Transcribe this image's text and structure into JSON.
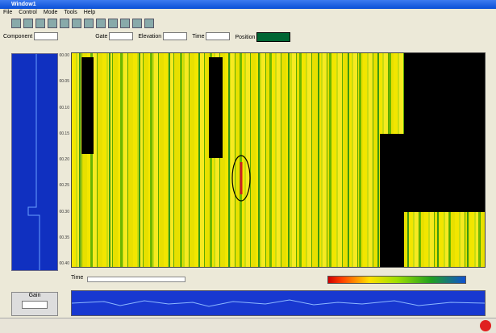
{
  "window": {
    "title": "Window1"
  },
  "menu": [
    "File",
    "Control",
    "Mode",
    "Tools",
    "Help"
  ],
  "params": {
    "fields": [
      "Component",
      "Gate",
      "Elevation",
      "Time",
      "Position"
    ]
  },
  "plot": {
    "yticks": [
      "00.00",
      "00.05",
      "00.10",
      "00.15",
      "00.20",
      "00.25",
      "00.30",
      "00.35",
      "00.40"
    ]
  },
  "controls": {
    "time_label": "Time",
    "gain_label": "Gain"
  }
}
